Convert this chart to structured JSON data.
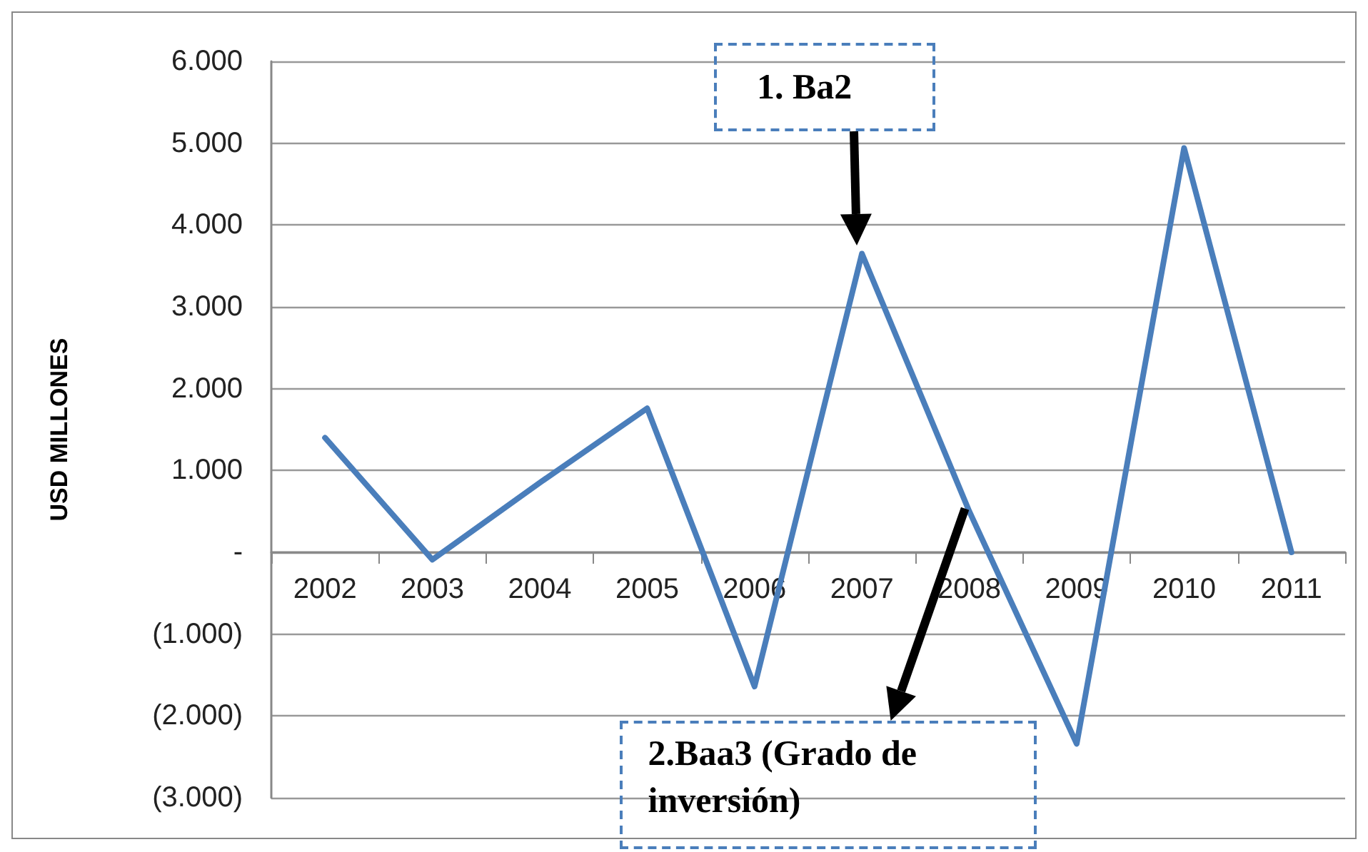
{
  "chart_data": {
    "type": "line",
    "ylabel": "USD MILLONES",
    "categories": [
      "2002",
      "2003",
      "2004",
      "2005",
      "2006",
      "2007",
      "2008",
      "2009",
      "2010",
      "2011"
    ],
    "series": [
      {
        "color": "#4a7ebb",
        "values": [
          1400,
          -90,
          850,
          1760,
          -1640,
          3650,
          500,
          -2340,
          4940,
          0
        ]
      }
    ],
    "ylim": [
      -3000,
      6000
    ],
    "yticks": [
      {
        "value": -3000,
        "label": "(3.000)"
      },
      {
        "value": -2000,
        "label": "(2.000)"
      },
      {
        "value": -1000,
        "label": "(1.000)"
      },
      {
        "value": 0,
        "label": "-"
      },
      {
        "value": 1000,
        "label": "1.000"
      },
      {
        "value": 2000,
        "label": "2.000"
      },
      {
        "value": 3000,
        "label": "3.000"
      },
      {
        "value": 4000,
        "label": "4.000"
      },
      {
        "value": 5000,
        "label": "5.000"
      },
      {
        "value": 6000,
        "label": "6.000"
      }
    ],
    "grid": "y",
    "marker": "none",
    "line_style": "solid",
    "annotations": [
      "1. Ba2",
      {
        "text": "2.Baa3 (Grado de inversión)",
        "x": "2008",
        "y": 500
      }
    ]
  }
}
